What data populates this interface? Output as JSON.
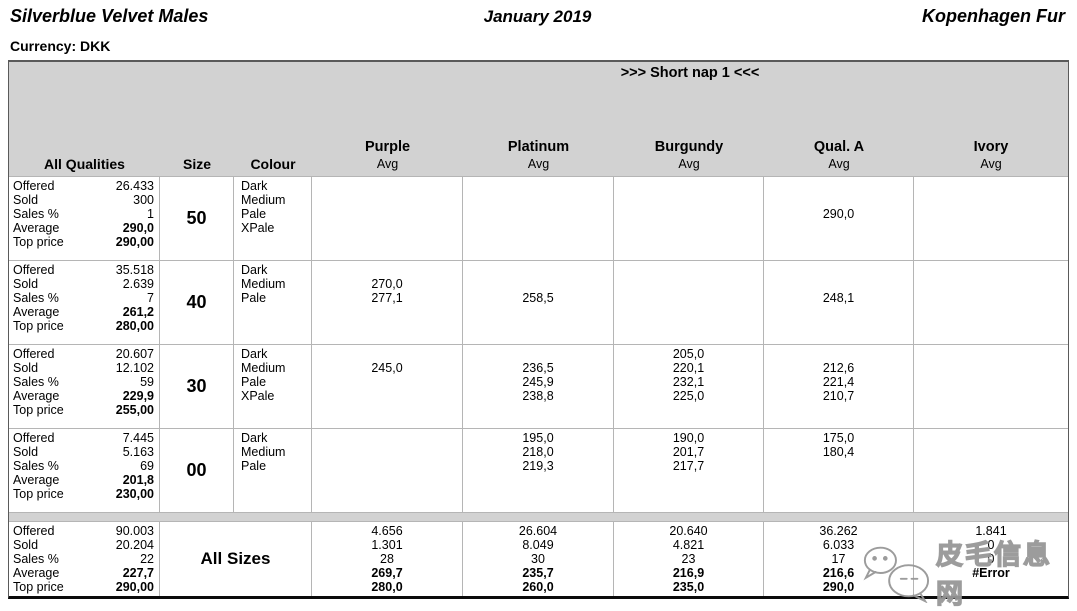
{
  "page": {
    "title_left": "Silverblue Velvet Males",
    "title_center": "January 2019",
    "title_right": "Kopenhagen Fur",
    "currency_label": "Currency: DKK"
  },
  "colors": {
    "header_bg": "#d2d2d2",
    "grid_line": "#b5b5b5",
    "outer_border": "#5a5a5a",
    "bottom_rule": "#0a0a0a",
    "watermark": "#979797"
  },
  "table": {
    "section_label": ">>> Short nap 1 <<<",
    "stats_header": "All Qualities",
    "size_header": "Size",
    "colour_header": "Colour",
    "avg_label": "Avg",
    "columns": [
      "Purple",
      "Platinum",
      "Burgundy",
      "Qual. A",
      "Ivory"
    ],
    "stat_labels": [
      "Offered",
      "Sold",
      "Sales %",
      "Average",
      "Top price"
    ],
    "groups": [
      {
        "size": "50",
        "stats": [
          "26.433",
          "300",
          "1",
          "290,0",
          "290,00"
        ],
        "colours": [
          "Dark",
          "Medium",
          "Pale",
          "XPale"
        ],
        "values": [
          [
            "",
            "",
            "",
            ""
          ],
          [
            "",
            "",
            "",
            ""
          ],
          [
            "",
            "",
            "",
            ""
          ],
          [
            "",
            "",
            "290,0",
            ""
          ],
          [
            "",
            "",
            "",
            ""
          ]
        ]
      },
      {
        "size": "40",
        "stats": [
          "35.518",
          "2.639",
          "7",
          "261,2",
          "280,00"
        ],
        "colours": [
          "Dark",
          "Medium",
          "Pale"
        ],
        "values": [
          [
            "",
            "270,0",
            "277,1"
          ],
          [
            "",
            "",
            "258,5"
          ],
          [
            "",
            "",
            ""
          ],
          [
            "",
            "",
            "248,1"
          ],
          [
            "",
            "",
            ""
          ]
        ]
      },
      {
        "size": "30",
        "stats": [
          "20.607",
          "12.102",
          "59",
          "229,9",
          "255,00"
        ],
        "colours": [
          "Dark",
          "Medium",
          "Pale",
          "XPale"
        ],
        "values": [
          [
            "",
            "245,0",
            "",
            ""
          ],
          [
            "",
            "236,5",
            "245,9",
            "238,8"
          ],
          [
            "205,0",
            "220,1",
            "232,1",
            "225,0"
          ],
          [
            "",
            "212,6",
            "221,4",
            "210,7"
          ],
          [
            "",
            "",
            "",
            ""
          ]
        ]
      },
      {
        "size": "00",
        "stats": [
          "7.445",
          "5.163",
          "69",
          "201,8",
          "230,00"
        ],
        "colours": [
          "Dark",
          "Medium",
          "Pale"
        ],
        "values": [
          [
            "",
            "",
            ""
          ],
          [
            "195,0",
            "218,0",
            "219,3"
          ],
          [
            "190,0",
            "201,7",
            "217,7"
          ],
          [
            "175,0",
            "180,4",
            ""
          ],
          [
            "",
            "",
            ""
          ]
        ]
      }
    ],
    "totals": {
      "label": "All Sizes",
      "stats": [
        "90.003",
        "20.204",
        "22",
        "227,7",
        "290,00"
      ],
      "columns": [
        [
          "4.656",
          "1.301",
          "28",
          "269,7",
          "280,0"
        ],
        [
          "26.604",
          "8.049",
          "30",
          "235,7",
          "260,0"
        ],
        [
          "20.640",
          "4.821",
          "23",
          "216,9",
          "235,0"
        ],
        [
          "36.262",
          "6.033",
          "17",
          "216,6",
          "290,0"
        ],
        [
          "1.841",
          "0",
          "0",
          "#Error",
          ""
        ]
      ]
    }
  },
  "watermark": {
    "text": "皮毛信息网",
    "icon": "chat-bubbles-icon"
  }
}
